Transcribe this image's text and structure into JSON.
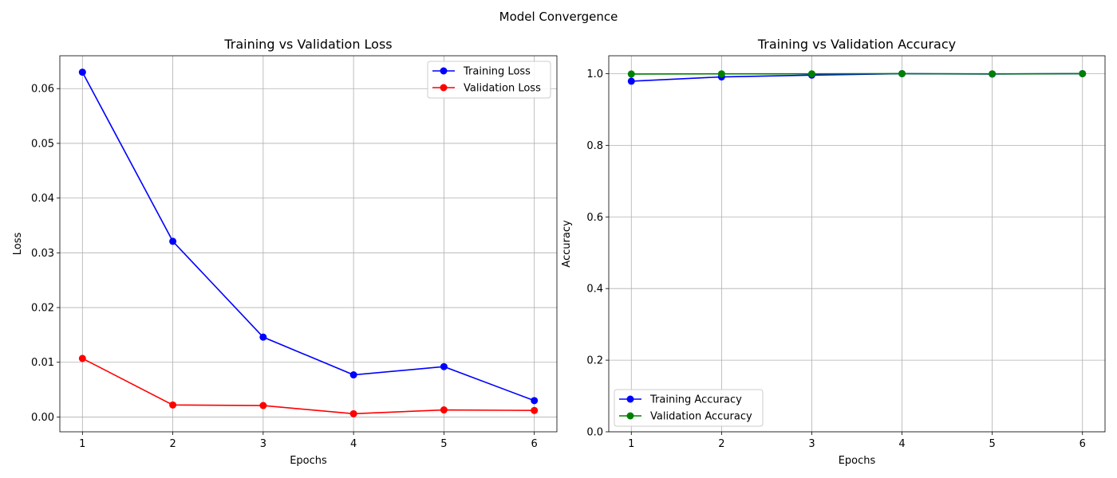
{
  "figure": {
    "suptitle": "Model Convergence"
  },
  "chart_data": [
    {
      "type": "line",
      "title": "Training vs Validation Loss",
      "xlabel": "Epochs",
      "ylabel": "Loss",
      "x": [
        1,
        2,
        3,
        4,
        5,
        6
      ],
      "xticks": [
        "1",
        "2",
        "3",
        "4",
        "5",
        "6"
      ],
      "xlim": [
        0.75,
        6.25
      ],
      "ylim": [
        -0.0027,
        0.066
      ],
      "yticks": [
        0.0,
        0.01,
        0.02,
        0.03,
        0.04,
        0.05,
        0.06
      ],
      "ytick_labels": [
        "0.00",
        "0.01",
        "0.02",
        "0.03",
        "0.04",
        "0.05",
        "0.06"
      ],
      "grid": true,
      "legend_position": "upper right",
      "series": [
        {
          "name": "Training Loss",
          "color": "#0000ff",
          "marker": "circle",
          "values": [
            0.063,
            0.0321,
            0.0146,
            0.0077,
            0.0092,
            0.003
          ]
        },
        {
          "name": "Validation Loss",
          "color": "#ff0000",
          "marker": "circle",
          "values": [
            0.0107,
            0.0022,
            0.0021,
            0.0006,
            0.0013,
            0.0012
          ]
        }
      ]
    },
    {
      "type": "line",
      "title": "Training vs Validation Accuracy",
      "xlabel": "Epochs",
      "ylabel": "Accuracy",
      "x": [
        1,
        2,
        3,
        4,
        5,
        6
      ],
      "xticks": [
        "1",
        "2",
        "3",
        "4",
        "5",
        "6"
      ],
      "xlim": [
        0.75,
        6.25
      ],
      "ylim": [
        0.0,
        1.05
      ],
      "yticks": [
        0.0,
        0.2,
        0.4,
        0.6,
        0.8,
        1.0
      ],
      "ytick_labels": [
        "0.0",
        "0.2",
        "0.4",
        "0.6",
        "0.8",
        "1.0"
      ],
      "grid": true,
      "legend_position": "lower left",
      "series": [
        {
          "name": "Training Accuracy",
          "color": "#0000ff",
          "marker": "circle",
          "values": [
            0.979,
            0.991,
            0.996,
            1.0,
            0.999,
            1.0
          ]
        },
        {
          "name": "Validation Accuracy",
          "color": "#008000",
          "marker": "circle",
          "values": [
            0.999,
            0.9995,
            0.9995,
            1.0,
            0.9995,
            1.0
          ]
        }
      ]
    }
  ]
}
